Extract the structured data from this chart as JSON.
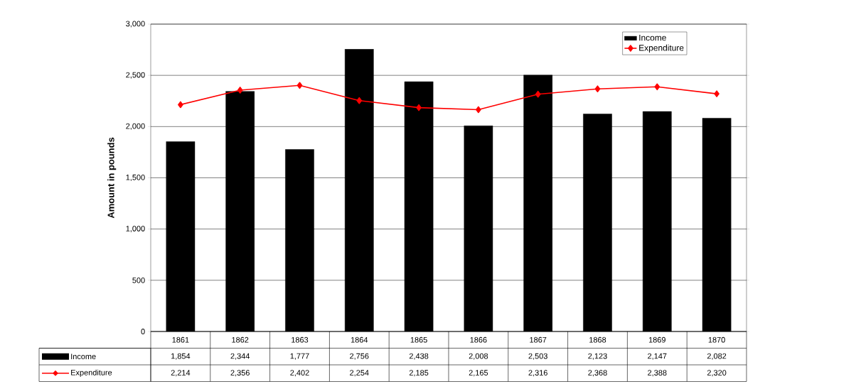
{
  "chart_data": {
    "type": "bar",
    "ylabel": "Amount in pounds",
    "categories": [
      "1861",
      "1862",
      "1863",
      "1864",
      "1865",
      "1866",
      "1867",
      "1868",
      "1869",
      "1870"
    ],
    "series": [
      {
        "name": "Income",
        "color": "#000000",
        "values": [
          1854,
          2344,
          1777,
          2756,
          2438,
          2008,
          2503,
          2123,
          2147,
          2082
        ],
        "value_labels": [
          "1,854",
          "2,344",
          "1,777",
          "2,756",
          "2,438",
          "2,008",
          "2,503",
          "2,123",
          "2,147",
          "2,082"
        ]
      },
      {
        "name": "Expenditure",
        "type": "line",
        "color": "#ff0000",
        "marker": "diamond",
        "line_style": "solid",
        "values": [
          2214,
          2356,
          2402,
          2254,
          2185,
          2165,
          2316,
          2368,
          2388,
          2320
        ],
        "value_labels": [
          "2,214",
          "2,356",
          "2,402",
          "2,254",
          "2,185",
          "2,165",
          "2,316",
          "2,368",
          "2,388",
          "2,320"
        ]
      }
    ],
    "ylim": [
      0,
      3000
    ],
    "yticks": [
      {
        "value": 0,
        "label": "0"
      },
      {
        "value": 500,
        "label": "500"
      },
      {
        "value": 1000,
        "label": "1,000"
      },
      {
        "value": 1500,
        "label": "1,500"
      },
      {
        "value": 2000,
        "label": "2,000"
      },
      {
        "value": 2500,
        "label": "2,500"
      },
      {
        "value": 3000,
        "label": "3,000"
      }
    ],
    "grid": "y",
    "legend": "top right"
  }
}
